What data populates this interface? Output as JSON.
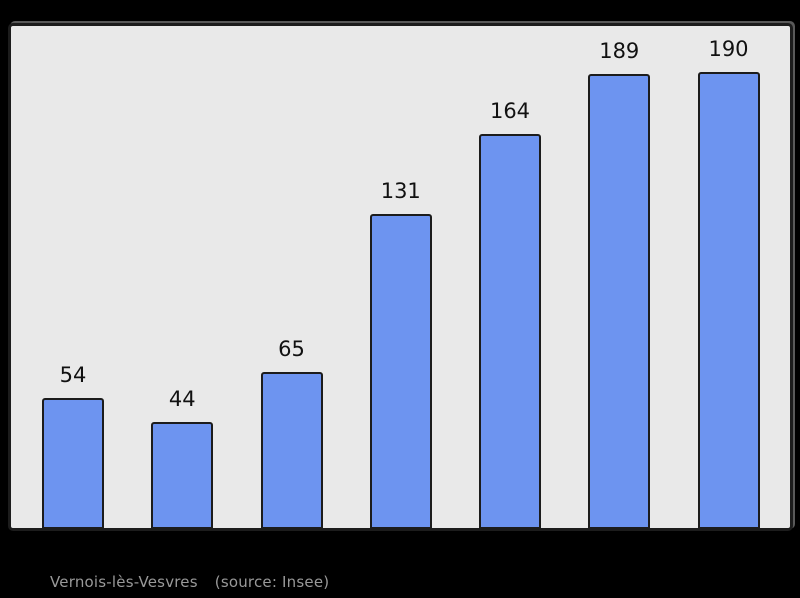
{
  "footer": {
    "title": "Vernois-lès-Vesvres",
    "source": "(source: Insee)"
  },
  "chart_data": {
    "type": "bar",
    "values": [
      54,
      44,
      65,
      131,
      164,
      189,
      190
    ],
    "bar_labels": [
      "54",
      "44",
      "65",
      "131",
      "164",
      "189",
      "190"
    ],
    "title": "",
    "xlabel": "",
    "ylabel": "",
    "ylim": [
      0,
      209
    ],
    "grid": false,
    "legend": false,
    "x_tick_labels": [],
    "footer_text": "Vernois-lès-Vesvres    (source: Insee)",
    "colors": {
      "bar_fill": "#6d94f0",
      "bar_border": "#1c1c1c",
      "panel_fill": "#e9e9e9",
      "panel_border": "#1c1c1c",
      "value_label": "#111111",
      "footer_text": "#999999",
      "page_background": "#000000"
    }
  }
}
